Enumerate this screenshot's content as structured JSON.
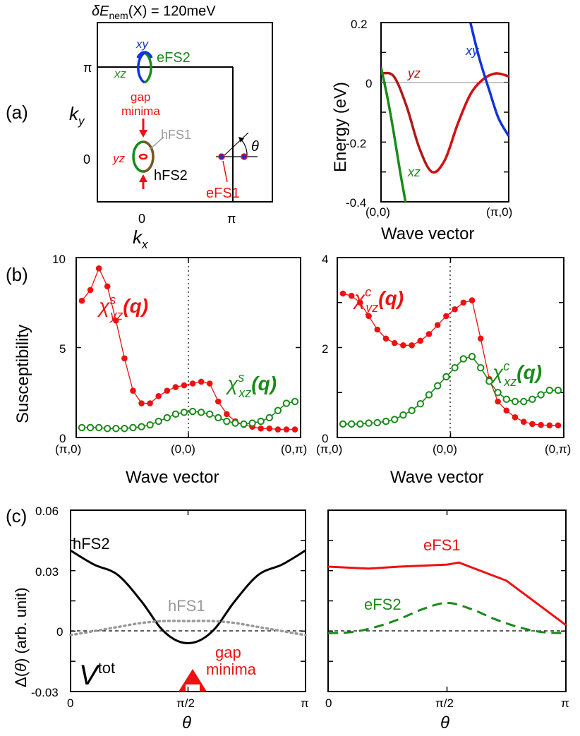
{
  "panel_labels": {
    "a": "(a)",
    "b": "(b)",
    "c": "(c)"
  },
  "colors": {
    "red": "#ee1111",
    "green": "#1a8a1a",
    "blue": "#1133dd",
    "darkred": "#b01818",
    "gray": "#999999",
    "black": "#000000"
  },
  "chart_data": [
    {
      "type": "diagram",
      "id": "fermi-surface",
      "title": "δE_nem(X) = 120meV",
      "title_parts": {
        "delta": "δ",
        "E": "E",
        "sub": "nem",
        "rest": "(X) = 120meV"
      },
      "xlabel": "k_x",
      "xlabel_parts": {
        "main": "k",
        "sub": "x"
      },
      "ylabel": "k_y",
      "ylabel_parts": {
        "main": "k",
        "sub": "y"
      },
      "xticks": [
        "0",
        "π"
      ],
      "yticks": [
        "π",
        "0"
      ],
      "labels": {
        "xy": "xy",
        "xz_top": "xz",
        "eFS2": "eFS2",
        "gap": "gap",
        "minima": "minima",
        "hFS1": "hFS1",
        "yz": "yz",
        "hFS2": "hFS2",
        "eFS1": "eFS1",
        "theta": "θ"
      }
    },
    {
      "type": "line",
      "id": "band-structure",
      "xlabel": "Wave vector",
      "ylabel": "Energy (eV)",
      "xticks": [
        "(0,0)",
        "(π,0)"
      ],
      "yticks": [
        "0.2",
        "0",
        "-0.2",
        "-0.4"
      ],
      "ylim": [
        -0.4,
        0.2
      ],
      "series": [
        {
          "name": "yz",
          "x": [
            0,
            0.1,
            0.2,
            0.3,
            0.4,
            0.5,
            0.6,
            0.7,
            0.8,
            0.9,
            1.0
          ],
          "values": [
            0.03,
            0.02,
            -0.08,
            -0.22,
            -0.3,
            -0.26,
            -0.14,
            -0.04,
            0.01,
            0.03,
            0.02
          ]
        },
        {
          "name": "xz",
          "x": [
            0,
            0.05,
            0.1,
            0.15,
            0.2
          ],
          "values": [
            0.05,
            -0.05,
            -0.17,
            -0.3,
            -0.42
          ]
        },
        {
          "name": "xy",
          "x": [
            0.7,
            0.77,
            0.85,
            0.92,
            1.0
          ],
          "values": [
            0.2,
            0.08,
            -0.03,
            -0.12,
            -0.18
          ]
        }
      ]
    },
    {
      "type": "line",
      "id": "spin-susceptibility",
      "ylabel": "Susceptibility",
      "xlabel": "Wave vector",
      "xticks": [
        "(π,0)",
        "(0,0)",
        "(0,π)"
      ],
      "yticks": [
        "10",
        "5",
        "0"
      ],
      "ylim": [
        0,
        10
      ],
      "series": [
        {
          "name": "χ^s_yz(q)",
          "label_parts": {
            "chi": "χ",
            "sup": "s",
            "sub": "yz",
            "q": "(q)"
          },
          "values": [
            7.6,
            8.2,
            9.4,
            8.4,
            6.5,
            4.4,
            2.6,
            1.9,
            1.9,
            2.3,
            2.6,
            2.8,
            2.9,
            3.0,
            3.1,
            3.0,
            2.0,
            1.3,
            0.9,
            0.7,
            0.6,
            0.5,
            0.5,
            0.45,
            0.45,
            0.45
          ]
        },
        {
          "name": "χ^s_xz(q)",
          "label_parts": {
            "chi": "χ",
            "sup": "s",
            "sub": "xz",
            "q": "(q)"
          },
          "values": [
            0.55,
            0.55,
            0.55,
            0.5,
            0.5,
            0.5,
            0.55,
            0.6,
            0.7,
            0.9,
            1.1,
            1.3,
            1.4,
            1.45,
            1.4,
            1.3,
            1.1,
            0.9,
            0.8,
            0.75,
            0.8,
            0.9,
            1.1,
            1.5,
            1.9,
            2.0
          ]
        }
      ]
    },
    {
      "type": "line",
      "id": "charge-susceptibility",
      "xlabel": "Wave vector",
      "xticks": [
        "(π,0)",
        "(0,0)",
        "(0,π)"
      ],
      "yticks": [
        "4",
        "2",
        "0"
      ],
      "ylim": [
        0,
        4
      ],
      "series": [
        {
          "name": "χ^c_yz(q)",
          "label_parts": {
            "chi": "χ",
            "sup": "c",
            "sub": "yz",
            "q": "(q)"
          },
          "values": [
            3.2,
            3.15,
            3.0,
            2.7,
            2.4,
            2.2,
            2.1,
            2.05,
            2.05,
            2.15,
            2.3,
            2.5,
            2.7,
            2.85,
            3.0,
            3.05,
            2.2,
            1.3,
            0.8,
            0.6,
            0.45,
            0.35,
            0.3,
            0.28,
            0.27,
            0.27
          ]
        },
        {
          "name": "χ^c_xz(q)",
          "label_parts": {
            "chi": "χ",
            "sup": "c",
            "sub": "xz",
            "q": "(q)"
          },
          "values": [
            0.3,
            0.3,
            0.3,
            0.32,
            0.33,
            0.36,
            0.4,
            0.5,
            0.6,
            0.75,
            0.95,
            1.15,
            1.35,
            1.55,
            1.75,
            1.8,
            1.55,
            1.25,
            1.0,
            0.85,
            0.8,
            0.8,
            0.85,
            0.95,
            1.05,
            1.05
          ]
        }
      ]
    },
    {
      "type": "line",
      "id": "gap-hole",
      "ylabel": "Δ(θ) (arb. unit)",
      "ylabel_parts": {
        "delta": "Δ(",
        "theta": "θ",
        "rest": ") (arb. unit)"
      },
      "xlabel": "θ",
      "xticks": [
        "0",
        "π/2",
        "π"
      ],
      "yticks": [
        "0.06",
        "0.03",
        "0",
        "-0.03"
      ],
      "ylim": [
        -0.03,
        0.06
      ],
      "annotation": {
        "V": "V",
        "sup": "tot",
        "gap": "gap",
        "minima": "minima"
      },
      "series": [
        {
          "name": "hFS2",
          "x": [
            0,
            0.1,
            0.2,
            0.3,
            0.38,
            0.44,
            0.5,
            0.56,
            0.62,
            0.7,
            0.8,
            0.9,
            1.0
          ],
          "values": [
            0.04,
            0.033,
            0.028,
            0.015,
            0.002,
            -0.004,
            -0.006,
            -0.004,
            0.002,
            0.015,
            0.028,
            0.033,
            0.04
          ]
        },
        {
          "name": "hFS1",
          "dashed": "dotted",
          "x": [
            0,
            0.1,
            0.2,
            0.3,
            0.4,
            0.5,
            0.6,
            0.7,
            0.8,
            0.9,
            1.0
          ],
          "values": [
            -0.002,
            0.0,
            0.002,
            0.004,
            0.005,
            0.005,
            0.005,
            0.004,
            0.002,
            0.0,
            -0.002
          ]
        }
      ]
    },
    {
      "type": "line",
      "id": "gap-electron",
      "xlabel": "θ",
      "xticks": [
        "0",
        "π/2",
        "π"
      ],
      "ylim": [
        -0.03,
        0.06
      ],
      "series": [
        {
          "name": "eFS1",
          "x": [
            0,
            0.17,
            0.3,
            0.5,
            0.55,
            0.75,
            1.0
          ],
          "values": [
            0.032,
            0.031,
            0.032,
            0.033,
            0.034,
            0.025,
            0.003
          ]
        },
        {
          "name": "eFS2",
          "dashed": "dashed",
          "x": [
            0,
            0.1,
            0.2,
            0.3,
            0.4,
            0.5,
            0.6,
            0.7,
            0.8,
            0.9,
            1.0
          ],
          "values": [
            -0.001,
            -0.0005,
            0.002,
            0.006,
            0.011,
            0.014,
            0.011,
            0.006,
            0.002,
            -0.0005,
            -0.001
          ]
        }
      ]
    }
  ]
}
